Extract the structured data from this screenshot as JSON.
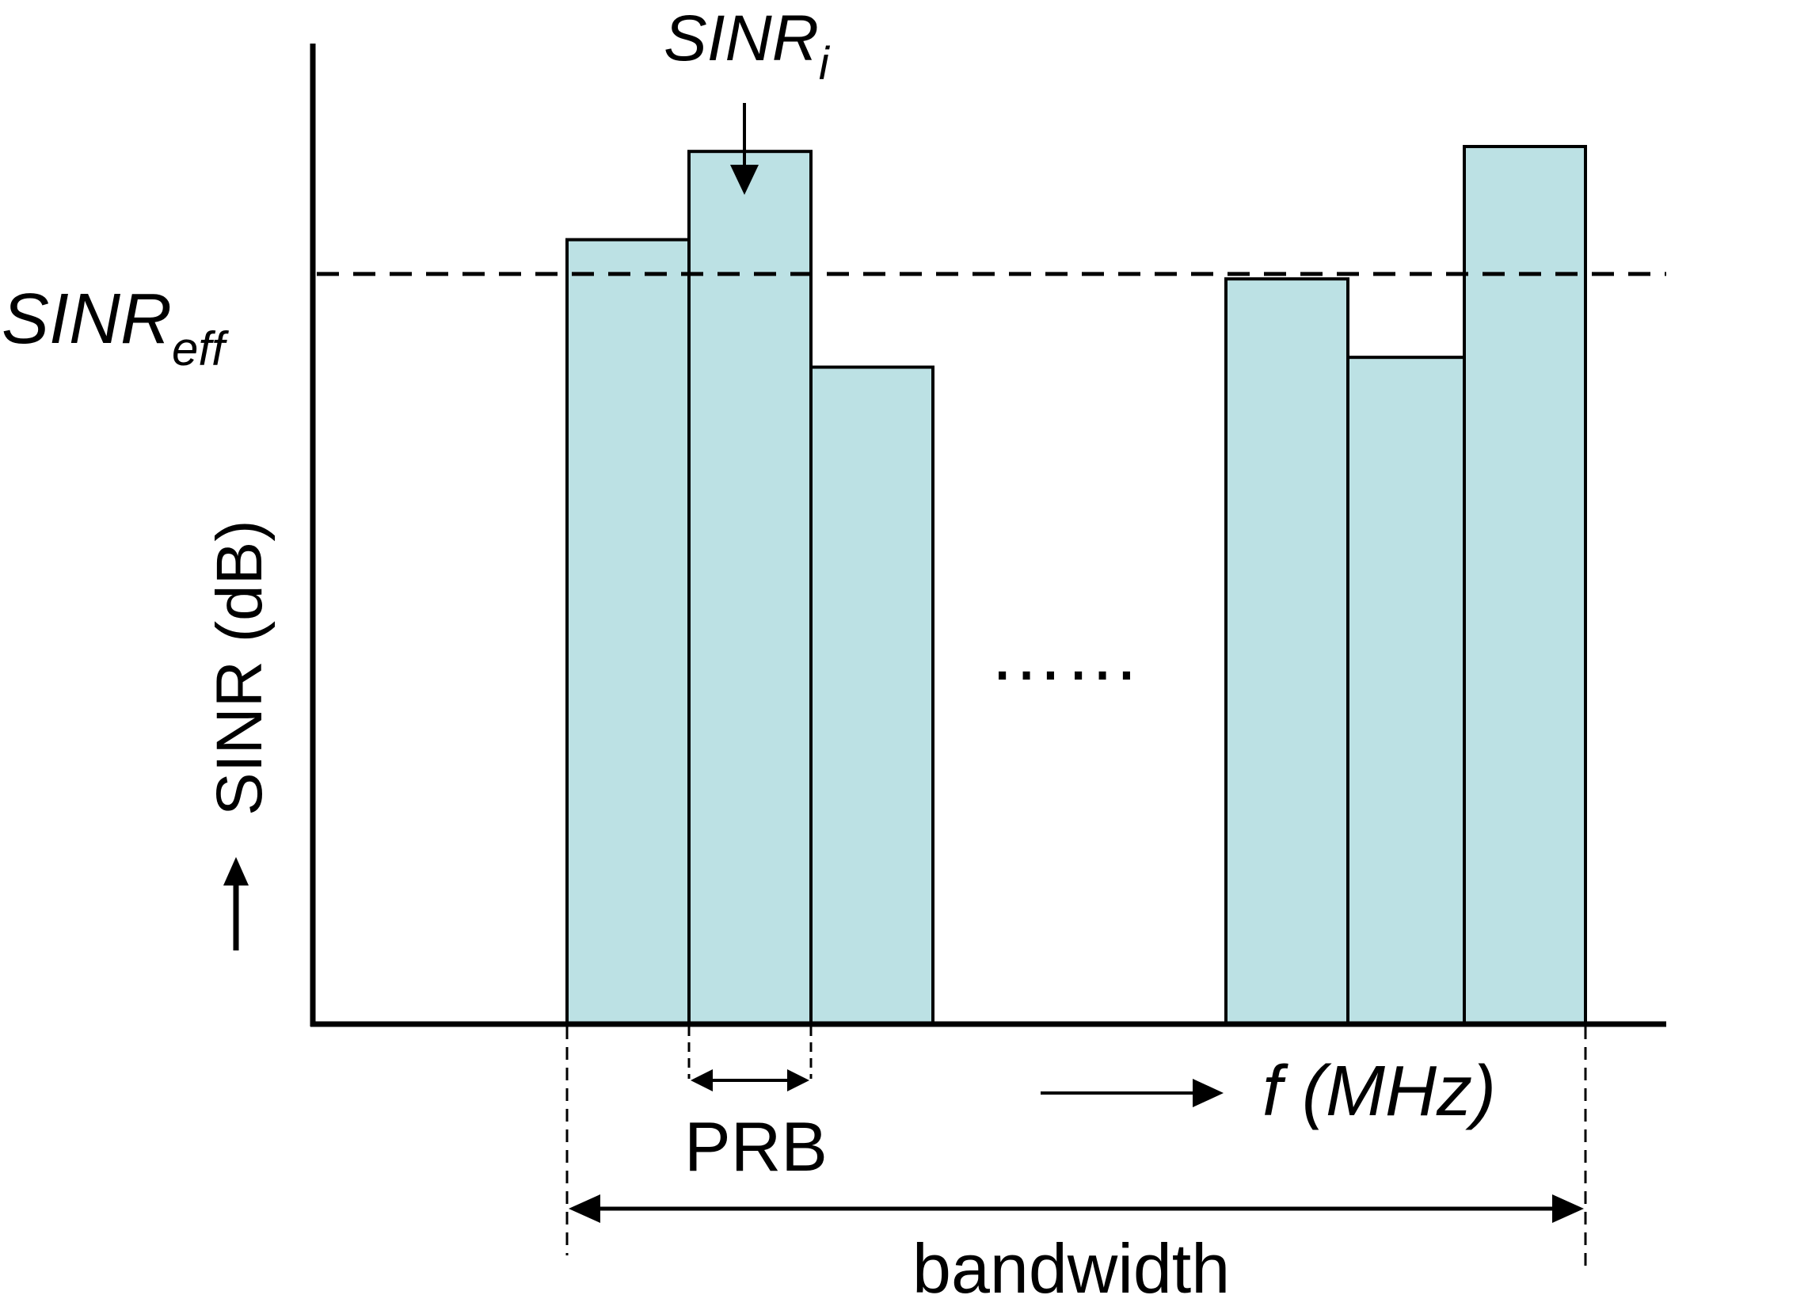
{
  "labels": {
    "sinr_i_base": "SINR",
    "sinr_i_sub": "i",
    "sinr_eff_base": "SINR",
    "sinr_eff_sub": "eff",
    "y_axis_arrow": "→",
    "y_axis": "SINR (dB)",
    "x_axis": "f (MHz)",
    "prb": "PRB",
    "bandwidth": "bandwidth",
    "ellipsis": "……"
  },
  "colors": {
    "bar_fill": "#bce1e4",
    "stroke": "#000000"
  },
  "bar_groups": [
    {
      "name": "left-group",
      "levels": [
        0.8,
        0.89,
        0.67
      ]
    },
    {
      "name": "right-group",
      "levels": [
        0.76,
        0.68,
        0.895
      ]
    }
  ],
  "threshold_level": 0.765
}
